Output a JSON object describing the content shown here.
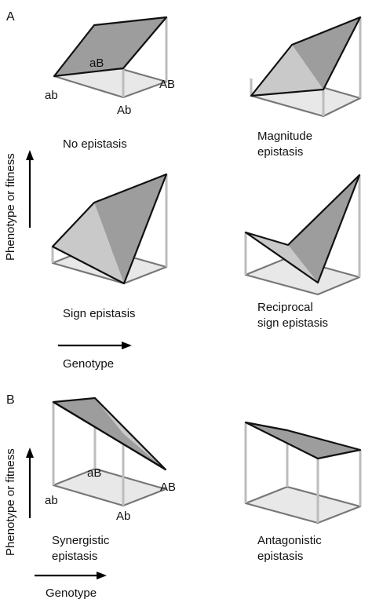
{
  "panels": [
    {
      "letter": "A"
    },
    {
      "letter": "B"
    }
  ],
  "genotypes": {
    "ab": "ab",
    "aB": "aB",
    "Ab": "Ab",
    "AB": "AB"
  },
  "axes": {
    "y_label": "Phenotype or fitness",
    "x_label": "Genotype"
  },
  "diagrams": [
    {
      "id": "no-epistasis",
      "title_lines": [
        "No epistasis"
      ]
    },
    {
      "id": "magnitude-epistasis",
      "title_lines": [
        "Magnitude",
        "epistasis"
      ]
    },
    {
      "id": "sign-epistasis",
      "title_lines": [
        "Sign epistasis"
      ]
    },
    {
      "id": "reciprocal-sign-epistasis",
      "title_lines": [
        "Reciprocal",
        "sign epistasis"
      ]
    },
    {
      "id": "synergistic-epistasis",
      "title_lines": [
        "Synergistic",
        "epistasis"
      ]
    },
    {
      "id": "antagonistic-epistasis",
      "title_lines": [
        "Antagonistic",
        "epistasis"
      ]
    }
  ]
}
